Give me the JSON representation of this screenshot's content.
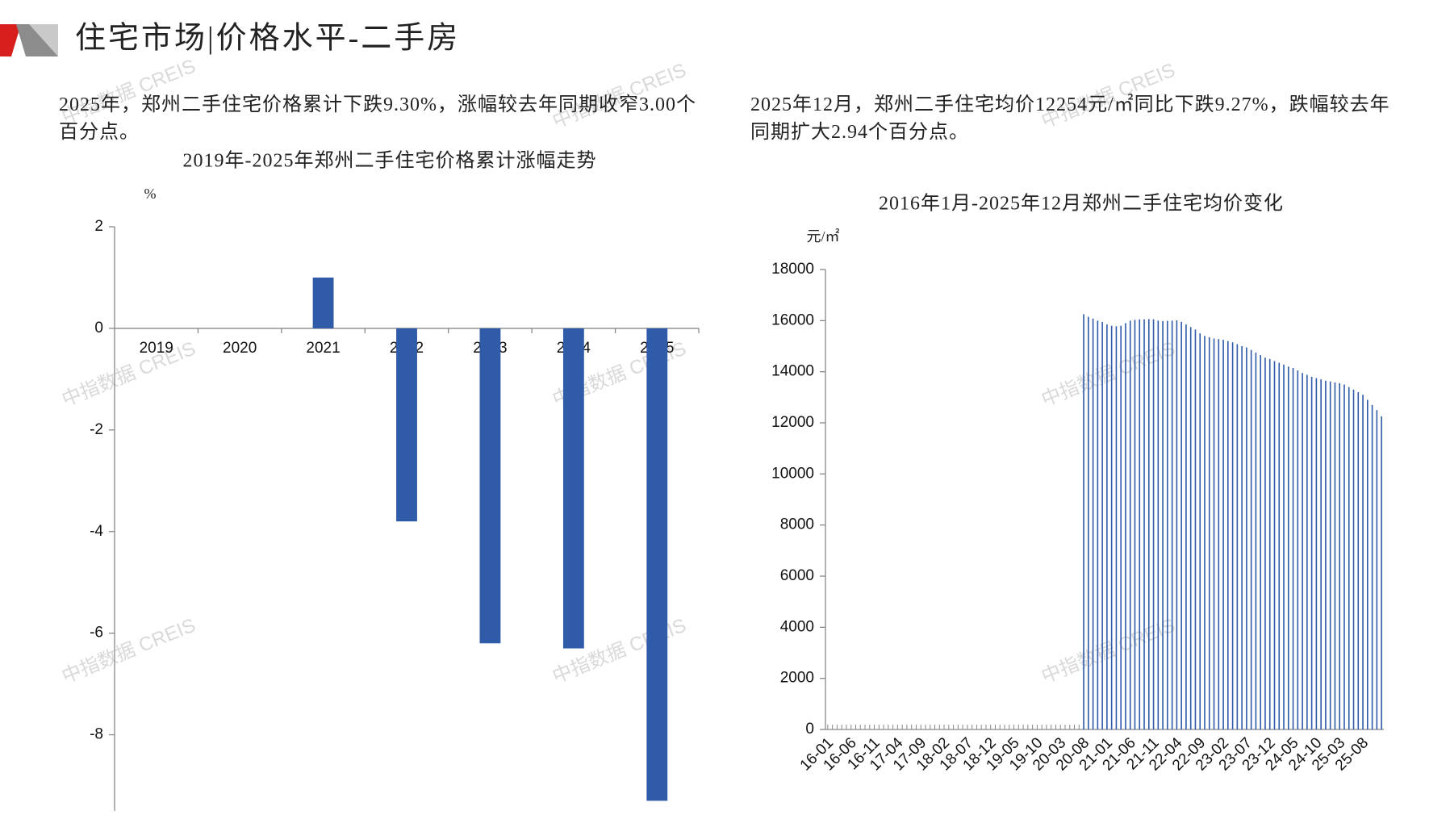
{
  "header": {
    "title": "住宅市场|价格水平-二手房"
  },
  "notes": [
    "2025年，郑州二手住宅价格累计下跌9.30%，涨幅较去年同期收窄3.00个百分点。",
    "2025年12月，郑州二手住宅均价12254元/㎡同比下跌9.27%，跌幅较去年同期扩大2.94个百分点。"
  ],
  "watermark": "中指数据 CREIS",
  "chart_data": [
    {
      "type": "bar",
      "title": "2019年-2025年郑州二手住宅价格累计涨幅走势",
      "y_unit": "%",
      "categories": [
        "2019",
        "2020",
        "2021",
        "2022",
        "2023",
        "2024",
        "2025"
      ],
      "values": [
        0,
        0,
        1.0,
        -3.8,
        -6.2,
        -6.3,
        -9.3
      ],
      "color": "#2f5ba9",
      "ylim": [
        -9.5,
        2
      ],
      "yticks": [
        -8,
        -6,
        -4,
        -2,
        0,
        2
      ]
    },
    {
      "type": "bar",
      "title": "2016年1月-2025年12月郑州二手住宅均价变化",
      "y_unit": "元/㎡",
      "categories": [
        "16-01",
        null,
        null,
        null,
        null,
        "16-06",
        null,
        null,
        null,
        null,
        "16-11",
        null,
        null,
        null,
        null,
        "17-04",
        null,
        null,
        null,
        null,
        "17-09",
        null,
        null,
        null,
        null,
        "18-02",
        null,
        null,
        null,
        null,
        "18-07",
        null,
        null,
        null,
        null,
        "18-12",
        null,
        null,
        null,
        null,
        "19-05",
        null,
        null,
        null,
        null,
        "19-10",
        null,
        null,
        null,
        null,
        "20-03",
        null,
        null,
        null,
        null,
        "20-08",
        null,
        null,
        null,
        null,
        "21-01",
        null,
        null,
        null,
        null,
        "21-06",
        null,
        null,
        null,
        null,
        "21-11",
        null,
        null,
        null,
        null,
        "22-04",
        null,
        null,
        null,
        null,
        "22-09",
        null,
        null,
        null,
        null,
        "23-02",
        null,
        null,
        null,
        null,
        "23-07",
        null,
        null,
        null,
        null,
        "23-12",
        null,
        null,
        null,
        null,
        "24-05",
        null,
        null,
        null,
        null,
        "24-10",
        null,
        null,
        null,
        null,
        "25-03",
        null,
        null,
        null,
        null,
        "25-08",
        null,
        null,
        null,
        null
      ],
      "values": [
        null,
        null,
        null,
        null,
        null,
        null,
        null,
        null,
        null,
        null,
        null,
        null,
        null,
        null,
        null,
        null,
        null,
        null,
        null,
        null,
        null,
        null,
        null,
        null,
        null,
        null,
        null,
        null,
        null,
        null,
        null,
        null,
        null,
        null,
        null,
        null,
        null,
        null,
        null,
        null,
        null,
        null,
        null,
        null,
        null,
        null,
        null,
        null,
        null,
        null,
        null,
        null,
        null,
        null,
        null,
        16250,
        16150,
        16080,
        16000,
        15950,
        15850,
        15800,
        15780,
        15800,
        15900,
        16000,
        16030,
        16050,
        16050,
        16060,
        16050,
        16000,
        15980,
        15990,
        16000,
        16010,
        15950,
        15850,
        15750,
        15650,
        15500,
        15400,
        15350,
        15300,
        15280,
        15250,
        15200,
        15150,
        15080,
        15000,
        14950,
        14850,
        14750,
        14650,
        14550,
        14500,
        14420,
        14350,
        14280,
        14200,
        14150,
        14050,
        13950,
        13880,
        13800,
        13750,
        13700,
        13650,
        13620,
        13580,
        13550,
        13500,
        13400,
        13300,
        13200,
        13100,
        12900,
        12700,
        12500,
        12254
      ],
      "color": "#2f5ba9",
      "ylim": [
        0,
        18000
      ],
      "yticks": [
        0,
        2000,
        4000,
        6000,
        8000,
        10000,
        12000,
        14000,
        16000,
        18000
      ]
    }
  ]
}
